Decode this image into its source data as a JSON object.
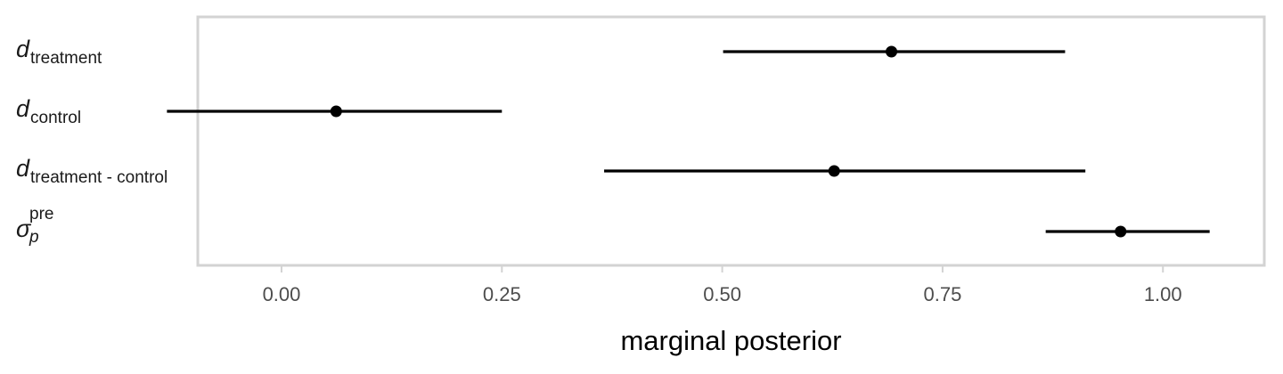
{
  "chart_data": {
    "type": "interval",
    "xlabel": "marginal posterior",
    "xlim": [
      -0.095,
      1.115
    ],
    "xticks": [
      "0.00",
      "0.25",
      "0.50",
      "0.75",
      "1.00"
    ],
    "xtick_values": [
      0.0,
      0.25,
      0.5,
      0.75,
      1.0
    ],
    "grid": false,
    "rows": [
      {
        "label_base": "d",
        "label_sub": "treatment",
        "label_sup": "",
        "point": 0.692,
        "lower": 0.501,
        "upper": 0.889
      },
      {
        "label_base": "d",
        "label_sub": "control",
        "label_sup": "",
        "point": 0.062,
        "lower": -0.13,
        "upper": 0.25
      },
      {
        "label_base": "d",
        "label_sub": "treatment - control",
        "label_sup": "",
        "point": 0.627,
        "lower": 0.366,
        "upper": 0.912
      },
      {
        "label_base": "σ",
        "label_sub": "p",
        "label_sup": "pre",
        "point": 0.952,
        "lower": 0.867,
        "upper": 1.053
      }
    ],
    "colors": {
      "interval": "#000000",
      "panel_border": "#d3d3d3",
      "tick_label": "#4d4d4d"
    }
  }
}
